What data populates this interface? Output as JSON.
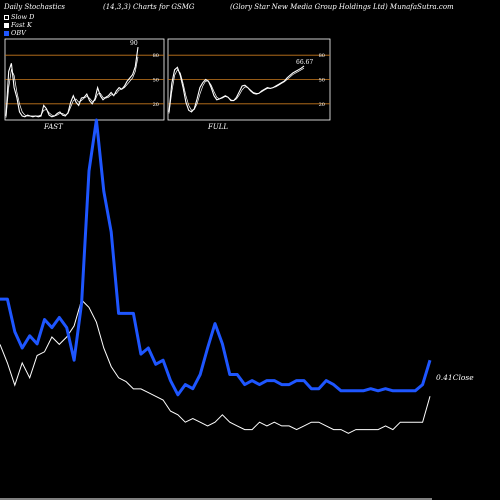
{
  "header": {
    "title": "Daily Stochastics",
    "params": "(14,3,3) Charts for GSMG",
    "company": "(Glory Star New  Media  Group Holdings Ltd) MunafaSutra.com"
  },
  "legend": [
    {
      "label": "Slow  D",
      "color": "#000000"
    },
    {
      "label": "Fast K",
      "color": "#ffffff"
    },
    {
      "label": "OBV",
      "color": "#1e56ff"
    }
  ],
  "colors": {
    "obv": "#1e56ff",
    "price": "#ffffff",
    "level_line": "#c87a1e",
    "background": "#000000"
  },
  "chart_data": [
    {
      "type": "line",
      "name": "fast-stochastic",
      "title": "FAST",
      "last_value_label": "90",
      "ylim": [
        0,
        100
      ],
      "yticks": [
        20,
        50,
        80
      ],
      "series": [
        {
          "values": [
            5,
            60,
            70,
            40,
            28,
            10,
            5,
            4,
            6,
            5,
            4,
            5,
            4,
            5,
            18,
            14,
            6,
            4,
            5,
            8,
            10,
            6,
            5,
            9,
            22,
            30,
            22,
            18,
            27,
            28,
            32,
            24,
            20,
            26,
            40,
            30,
            25,
            28,
            30,
            34,
            30,
            36,
            40,
            38,
            42,
            48,
            52,
            56,
            66,
            90
          ]
        },
        {
          "values": [
            3,
            40,
            62,
            55,
            35,
            20,
            10,
            6,
            5,
            5,
            5,
            5,
            5,
            6,
            12,
            13,
            9,
            6,
            5,
            6,
            8,
            8,
            6,
            8,
            16,
            24,
            26,
            22,
            24,
            27,
            29,
            27,
            23,
            24,
            32,
            33,
            28,
            27,
            28,
            31,
            31,
            33,
            37,
            38,
            40,
            44,
            48,
            52,
            60,
            78
          ]
        }
      ]
    },
    {
      "type": "line",
      "name": "full-stochastic",
      "title": "FULL",
      "last_value_label": "66.67",
      "ylim": [
        0,
        100
      ],
      "yticks": [
        20,
        50,
        80
      ],
      "series": [
        {
          "values": [
            10,
            45,
            62,
            65,
            55,
            40,
            22,
            12,
            10,
            14,
            26,
            40,
            46,
            50,
            48,
            40,
            30,
            25,
            26,
            28,
            30,
            28,
            24,
            24,
            28,
            35,
            42,
            43,
            40,
            36,
            33,
            32,
            33,
            36,
            38,
            40,
            39,
            40,
            42,
            44,
            46,
            48,
            52,
            55,
            58,
            60,
            62,
            64,
            66.67
          ]
        },
        {
          "values": [
            8,
            35,
            55,
            62,
            58,
            45,
            30,
            18,
            12,
            13,
            20,
            32,
            42,
            48,
            48,
            43,
            35,
            28,
            26,
            27,
            29,
            28,
            25,
            24,
            26,
            31,
            37,
            41,
            40,
            37,
            34,
            33,
            33,
            35,
            37,
            39,
            39,
            40,
            41,
            43,
            45,
            47,
            50,
            53,
            56,
            58,
            60,
            62,
            64
          ]
        }
      ]
    },
    {
      "type": "line",
      "name": "obv-and-price",
      "price_label": "0.41Close",
      "series": [
        {
          "name": "OBV",
          "values": [
            5.2,
            5.2,
            3.6,
            2.8,
            3.4,
            3.0,
            4.2,
            3.8,
            4.3,
            3.8,
            2.2,
            5.0,
            11.5,
            14.0,
            10.5,
            8.5,
            4.5,
            4.5,
            4.5,
            2.5,
            2.8,
            2.0,
            2.2,
            1.2,
            0.5,
            1.0,
            0.8,
            1.5,
            2.8,
            4.0,
            3.0,
            1.5,
            1.5,
            1.0,
            1.2,
            1.0,
            1.2,
            1.2,
            1.0,
            1.0,
            1.2,
            1.2,
            0.8,
            0.8,
            1.2,
            1.0,
            0.7,
            0.7,
            0.7,
            0.7,
            0.8,
            0.7,
            0.8,
            0.7,
            0.7,
            0.7,
            0.7,
            1.0,
            2.2
          ]
        },
        {
          "name": "Price",
          "values": [
            0.55,
            0.5,
            0.44,
            0.5,
            0.46,
            0.52,
            0.53,
            0.57,
            0.55,
            0.57,
            0.6,
            0.67,
            0.65,
            0.61,
            0.54,
            0.49,
            0.46,
            0.45,
            0.43,
            0.43,
            0.42,
            0.41,
            0.4,
            0.37,
            0.36,
            0.34,
            0.35,
            0.34,
            0.33,
            0.34,
            0.36,
            0.34,
            0.33,
            0.32,
            0.32,
            0.34,
            0.33,
            0.34,
            0.33,
            0.33,
            0.32,
            0.33,
            0.34,
            0.34,
            0.33,
            0.32,
            0.32,
            0.31,
            0.32,
            0.32,
            0.32,
            0.32,
            0.33,
            0.32,
            0.34,
            0.34,
            0.34,
            0.34,
            0.41
          ]
        }
      ]
    }
  ]
}
